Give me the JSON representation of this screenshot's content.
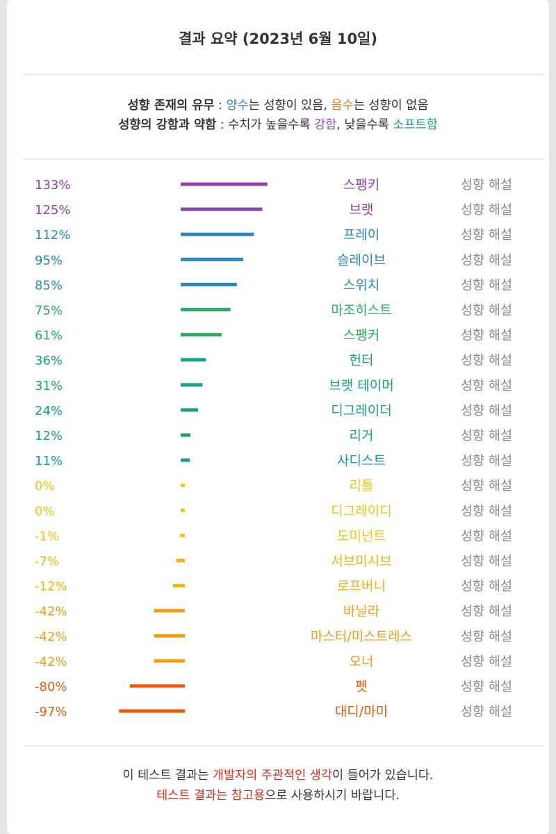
{
  "title": "결과 요약 (2023년 6월 10일)",
  "legend": {
    "line1": {
      "bold": "성향 존재의 유무",
      "sep": " : ",
      "positive": "양수",
      "mid": "는 성향이 있음, ",
      "negative": "음수",
      "end": "는 성향이 없음"
    },
    "line2": {
      "bold": "성향의 강함과 약함",
      "sep": " : 수치가 높을수록 ",
      "strong": "강함",
      "mid": ", 낮을수록 ",
      "soft": "소프트함"
    }
  },
  "chart_data": {
    "type": "bar",
    "orientation": "horizontal",
    "unit": "%",
    "baseline": 0,
    "categories": [
      "스팽키",
      "브랫",
      "프레이",
      "슬레이브",
      "스위치",
      "마조히스트",
      "스팽커",
      "헌터",
      "브랫 테이머",
      "디그레이더",
      "리거",
      "사디스트",
      "리틀",
      "디그레이디",
      "도미넌트",
      "서브미시브",
      "로프버니",
      "바닐라",
      "마스터/미스트레스",
      "오너",
      "펫",
      "대디/마미"
    ],
    "values": [
      133,
      125,
      112,
      95,
      85,
      75,
      61,
      36,
      31,
      24,
      12,
      11,
      0,
      0,
      -1,
      -7,
      -12,
      -42,
      -42,
      -42,
      -80,
      -97
    ],
    "value_labels": [
      "133%",
      "125%",
      "112%",
      "95%",
      "85%",
      "75%",
      "61%",
      "36%",
      "31%",
      "24%",
      "12%",
      "11%",
      "0%",
      "0%",
      "-1%",
      "-7%",
      "-12%",
      "-42%",
      "-42%",
      "-42%",
      "-80%",
      "-97%"
    ],
    "colors": [
      "#8e44ad",
      "#8e44ad",
      "#2e86c1",
      "#2e86c1",
      "#2e86c1",
      "#27ae60",
      "#27ae60",
      "#16a085",
      "#16a085",
      "#16a085",
      "#16a085",
      "#16a085",
      "#f1c40f",
      "#f1c40f",
      "#f1c40f",
      "#f1b40f",
      "#f1b40f",
      "#f39c12",
      "#f39c12",
      "#f39c12",
      "#e8590c",
      "#e8590c"
    ],
    "link_label": "성향 해설"
  },
  "footer": {
    "line1": {
      "a": "이 테스트 결과는 ",
      "b": "개발자의 주관적인 생각",
      "c": "이 들어가 있습니다."
    },
    "line2": {
      "a": "테스트 결과는 참고용",
      "b": "으로 사용하시기 바랍니다."
    }
  }
}
